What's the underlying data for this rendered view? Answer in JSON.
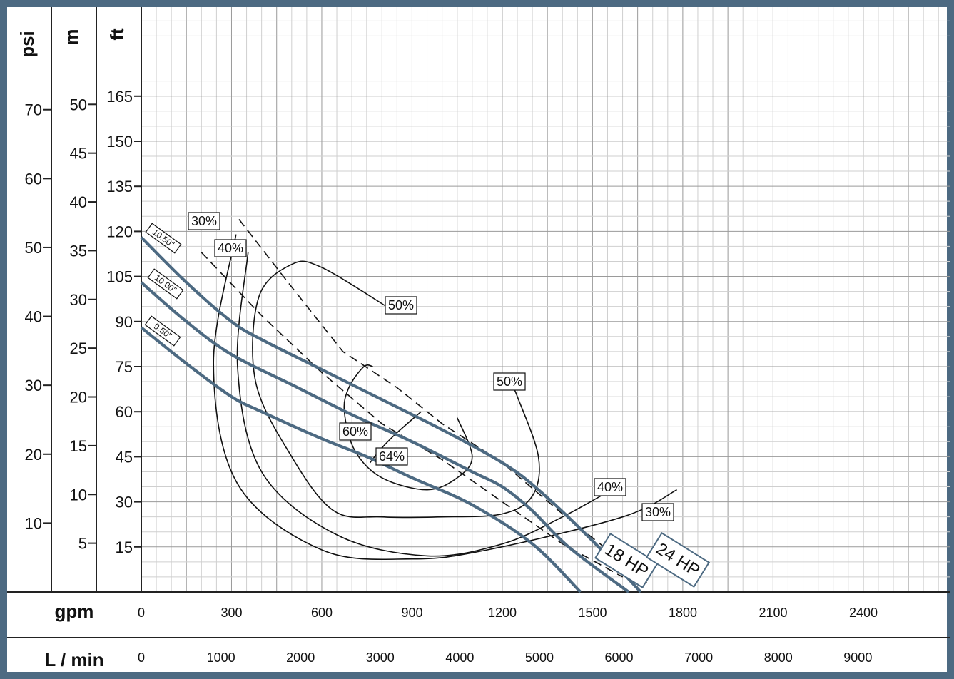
{
  "chart_data": {
    "type": "line",
    "x_primary": {
      "unit": "gpm",
      "ticks": [
        0,
        300,
        600,
        900,
        1200,
        1500,
        1800,
        2100,
        2400
      ],
      "range": [
        0,
        2700
      ]
    },
    "x_secondary": {
      "unit": "L / min",
      "ticks": [
        0,
        1000,
        2000,
        3000,
        4000,
        5000,
        6000,
        7000,
        8000,
        9000
      ]
    },
    "y_primary": {
      "unit": "ft",
      "ticks": [
        15,
        30,
        45,
        60,
        75,
        90,
        105,
        120,
        135,
        150,
        165
      ],
      "range": [
        0,
        195
      ]
    },
    "y_m": {
      "unit": "m",
      "ticks": [
        5,
        10,
        15,
        20,
        25,
        30,
        35,
        40,
        45,
        50
      ]
    },
    "y_psi": {
      "unit": "psi",
      "ticks": [
        10,
        20,
        30,
        40,
        50,
        60,
        70
      ]
    },
    "grid": true,
    "colors": {
      "frame": "#4d6a82",
      "curve": "#4d6a82",
      "grid_minor": "#c8c8c8",
      "grid_major": "#9a9a9a"
    },
    "impeller_curves": [
      {
        "name": "10.50\"",
        "points": [
          [
            0,
            118
          ],
          [
            150,
            103
          ],
          [
            300,
            90
          ],
          [
            400,
            84
          ],
          [
            600,
            74
          ],
          [
            800,
            64
          ],
          [
            1000,
            54
          ],
          [
            1200,
            43
          ],
          [
            1320,
            34
          ],
          [
            1500,
            17
          ],
          [
            1660,
            0
          ]
        ]
      },
      {
        "name": "10.00\"",
        "points": [
          [
            0,
            103
          ],
          [
            150,
            90
          ],
          [
            300,
            79
          ],
          [
            500,
            69
          ],
          [
            700,
            59
          ],
          [
            900,
            50
          ],
          [
            1100,
            40
          ],
          [
            1200,
            35
          ],
          [
            1300,
            27
          ],
          [
            1420,
            15
          ],
          [
            1620,
            0
          ]
        ]
      },
      {
        "name": "9.50\"",
        "points": [
          [
            0,
            88
          ],
          [
            150,
            76
          ],
          [
            300,
            65
          ],
          [
            400,
            60
          ],
          [
            600,
            51
          ],
          [
            750,
            45
          ],
          [
            900,
            38
          ],
          [
            1100,
            29
          ],
          [
            1300,
            16
          ],
          [
            1460,
            0
          ]
        ]
      }
    ],
    "efficiency_labels": [
      "30%",
      "40%",
      "50%",
      "60%",
      "64%",
      "50%",
      "40%",
      "30%"
    ],
    "power_curves": [
      {
        "name": "18 HP",
        "points": [
          [
            200,
            113
          ],
          [
            400,
            92
          ],
          [
            600,
            73
          ],
          [
            800,
            56
          ],
          [
            1000,
            44
          ],
          [
            1200,
            30
          ],
          [
            1400,
            16
          ],
          [
            1600,
            5
          ]
        ]
      },
      {
        "name": "24 HP",
        "points": [
          [
            325,
            124
          ],
          [
            480,
            104
          ],
          [
            670,
            80
          ],
          [
            850,
            68
          ],
          [
            1000,
            56
          ],
          [
            1200,
            43
          ],
          [
            1400,
            26
          ],
          [
            1550,
            14
          ],
          [
            1680,
            3
          ]
        ]
      }
    ],
    "efficiency_contours": [
      {
        "name": "30%",
        "points": [
          [
            315,
            119
          ],
          [
            240,
            76
          ],
          [
            320,
            36
          ],
          [
            600,
            14
          ],
          [
            900,
            11
          ],
          [
            1150,
            14
          ],
          [
            1600,
            25
          ],
          [
            1780,
            34
          ]
        ]
      },
      {
        "name": "40%",
        "points": [
          [
            355,
            113
          ],
          [
            320,
            75
          ],
          [
            400,
            40
          ],
          [
            650,
            19
          ],
          [
            950,
            12
          ],
          [
            1200,
            16
          ],
          [
            1400,
            25
          ],
          [
            1580,
            35
          ]
        ]
      },
      {
        "name": "50%",
        "points": [
          [
            815,
            95
          ],
          [
            600,
            108
          ],
          [
            500,
            109
          ],
          [
            390,
            98
          ],
          [
            380,
            70
          ],
          [
            500,
            45
          ],
          [
            640,
            27
          ],
          [
            800,
            25
          ],
          [
            1000,
            25
          ],
          [
            1200,
            26
          ],
          [
            1300,
            32
          ],
          [
            1320,
            45
          ],
          [
            1250,
            65
          ],
          [
            1230,
            69
          ]
        ]
      },
      {
        "name": "60%",
        "points": [
          [
            770,
            75
          ],
          [
            740,
            75
          ],
          [
            690,
            68
          ],
          [
            675,
            60
          ],
          [
            710,
            47
          ],
          [
            800,
            38
          ],
          [
            950,
            34
          ],
          [
            1050,
            38
          ],
          [
            1100,
            45
          ],
          [
            1050,
            58
          ]
        ]
      },
      {
        "name": "64%",
        "points": [
          [
            760,
            43
          ],
          [
            800,
            48
          ],
          [
            850,
            53
          ],
          [
            930,
            60
          ]
        ]
      }
    ]
  }
}
